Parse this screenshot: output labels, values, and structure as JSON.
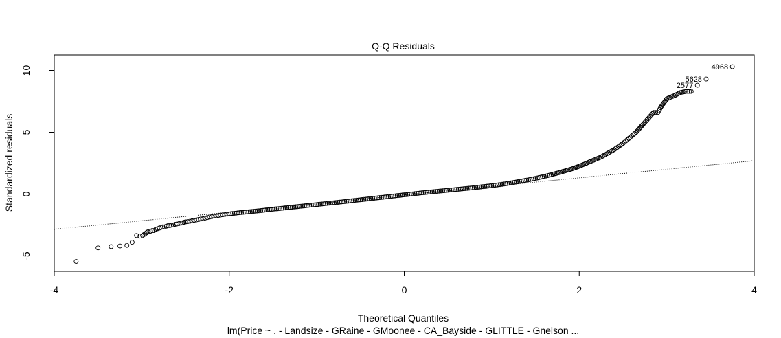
{
  "chart_data": {
    "type": "scatter",
    "title": "Q-Q Residuals",
    "xlabel": "Theoretical Quantiles",
    "ylabel": "Standardized residuals",
    "subtitle": "lm(Price ~ . - Landsize - GRaine - GMoonee - CA_Bayside - GLITTLE - Gnelson ...",
    "xlim": [
      -4.0,
      4.0
    ],
    "ylim": [
      -6.25,
      11.25
    ],
    "x_ticks": [
      -4,
      -2,
      0,
      2,
      4
    ],
    "x_tick_labels": [
      "-4",
      "-2",
      "0",
      "2",
      "4"
    ],
    "y_ticks": [
      -5,
      0,
      5,
      10
    ],
    "y_tick_labels": [
      "-5",
      "0",
      "5",
      "10"
    ],
    "grid": false,
    "marker": "open-circle",
    "reference_line": {
      "style": "dotted",
      "x": [
        -4.0,
        4.0
      ],
      "y": [
        -2.85,
        2.7
      ]
    },
    "labeled_points": [
      {
        "label": "4968",
        "x": 3.75,
        "y": 10.3
      },
      {
        "label": "5628",
        "x": 3.45,
        "y": 9.3
      },
      {
        "label": "2577",
        "x": 3.35,
        "y": 8.8
      }
    ],
    "points": [
      [
        -3.75,
        -5.45
      ],
      [
        -3.5,
        -4.35
      ],
      [
        -3.35,
        -4.25
      ],
      [
        -3.25,
        -4.2
      ],
      [
        -3.17,
        -4.15
      ],
      [
        -3.11,
        -3.9
      ],
      [
        -3.06,
        -3.35
      ],
      [
        -3.02,
        -3.4
      ],
      [
        -2.99,
        -3.35
      ],
      [
        -2.96,
        -3.2
      ],
      [
        -2.93,
        -3.05
      ],
      [
        -2.9,
        -3.0
      ],
      [
        -2.88,
        -2.95
      ],
      [
        -2.86,
        -2.95
      ],
      [
        -2.84,
        -2.85
      ],
      [
        -2.82,
        -2.8
      ],
      [
        -2.8,
        -2.75
      ],
      [
        -2.78,
        -2.7
      ],
      [
        -2.76,
        -2.65
      ],
      [
        -2.74,
        -2.65
      ],
      [
        -2.72,
        -2.6
      ],
      [
        -2.7,
        -2.55
      ],
      [
        -2.68,
        -2.55
      ],
      [
        -2.66,
        -2.52
      ],
      [
        -2.64,
        -2.5
      ],
      [
        -2.62,
        -2.45
      ],
      [
        -2.6,
        -2.42
      ],
      [
        -2.55,
        -2.35
      ],
      [
        -2.5,
        -2.25
      ],
      [
        -2.45,
        -2.2
      ],
      [
        -2.4,
        -2.12
      ],
      [
        -2.35,
        -2.05
      ],
      [
        -2.3,
        -1.98
      ],
      [
        -2.25,
        -1.9
      ],
      [
        -2.2,
        -1.82
      ],
      [
        -2.15,
        -1.76
      ],
      [
        -2.1,
        -1.7
      ],
      [
        -2.05,
        -1.65
      ],
      [
        -2.0,
        -1.6
      ],
      [
        -1.9,
        -1.52
      ],
      [
        -1.8,
        -1.45
      ],
      [
        -1.7,
        -1.38
      ],
      [
        -1.6,
        -1.3
      ],
      [
        -1.5,
        -1.22
      ],
      [
        -1.4,
        -1.15
      ],
      [
        -1.3,
        -1.07
      ],
      [
        -1.2,
        -1.0
      ],
      [
        -1.1,
        -0.92
      ],
      [
        -1.0,
        -0.85
      ],
      [
        -0.9,
        -0.77
      ],
      [
        -0.8,
        -0.7
      ],
      [
        -0.7,
        -0.62
      ],
      [
        -0.6,
        -0.54
      ],
      [
        -0.5,
        -0.46
      ],
      [
        -0.4,
        -0.38
      ],
      [
        -0.3,
        -0.3
      ],
      [
        -0.2,
        -0.22
      ],
      [
        -0.1,
        -0.14
      ],
      [
        0.0,
        -0.06
      ],
      [
        0.1,
        0.02
      ],
      [
        0.2,
        0.1
      ],
      [
        0.3,
        0.17
      ],
      [
        0.4,
        0.24
      ],
      [
        0.5,
        0.31
      ],
      [
        0.6,
        0.38
      ],
      [
        0.7,
        0.45
      ],
      [
        0.8,
        0.52
      ],
      [
        0.9,
        0.6
      ],
      [
        1.0,
        0.68
      ],
      [
        1.1,
        0.77
      ],
      [
        1.2,
        0.88
      ],
      [
        1.3,
        1.0
      ],
      [
        1.4,
        1.13
      ],
      [
        1.5,
        1.27
      ],
      [
        1.6,
        1.43
      ],
      [
        1.7,
        1.6
      ],
      [
        1.8,
        1.8
      ],
      [
        1.9,
        2.0
      ],
      [
        2.0,
        2.25
      ],
      [
        2.05,
        2.4
      ],
      [
        2.1,
        2.55
      ],
      [
        2.15,
        2.7
      ],
      [
        2.2,
        2.85
      ],
      [
        2.25,
        3.0
      ],
      [
        2.3,
        3.2
      ],
      [
        2.35,
        3.4
      ],
      [
        2.4,
        3.6
      ],
      [
        2.45,
        3.85
      ],
      [
        2.5,
        4.1
      ],
      [
        2.55,
        4.4
      ],
      [
        2.6,
        4.7
      ],
      [
        2.65,
        5.0
      ],
      [
        2.7,
        5.4
      ],
      [
        2.75,
        5.8
      ],
      [
        2.8,
        6.2
      ],
      [
        2.85,
        6.6
      ],
      [
        2.9,
        6.6
      ],
      [
        2.93,
        7.0
      ],
      [
        2.96,
        7.3
      ],
      [
        3.0,
        7.7
      ],
      [
        3.05,
        7.85
      ],
      [
        3.1,
        8.0
      ],
      [
        3.15,
        8.2
      ],
      [
        3.22,
        8.3
      ],
      [
        3.28,
        8.3
      ],
      [
        3.35,
        8.8
      ],
      [
        3.45,
        9.3
      ],
      [
        3.75,
        10.3
      ]
    ]
  }
}
